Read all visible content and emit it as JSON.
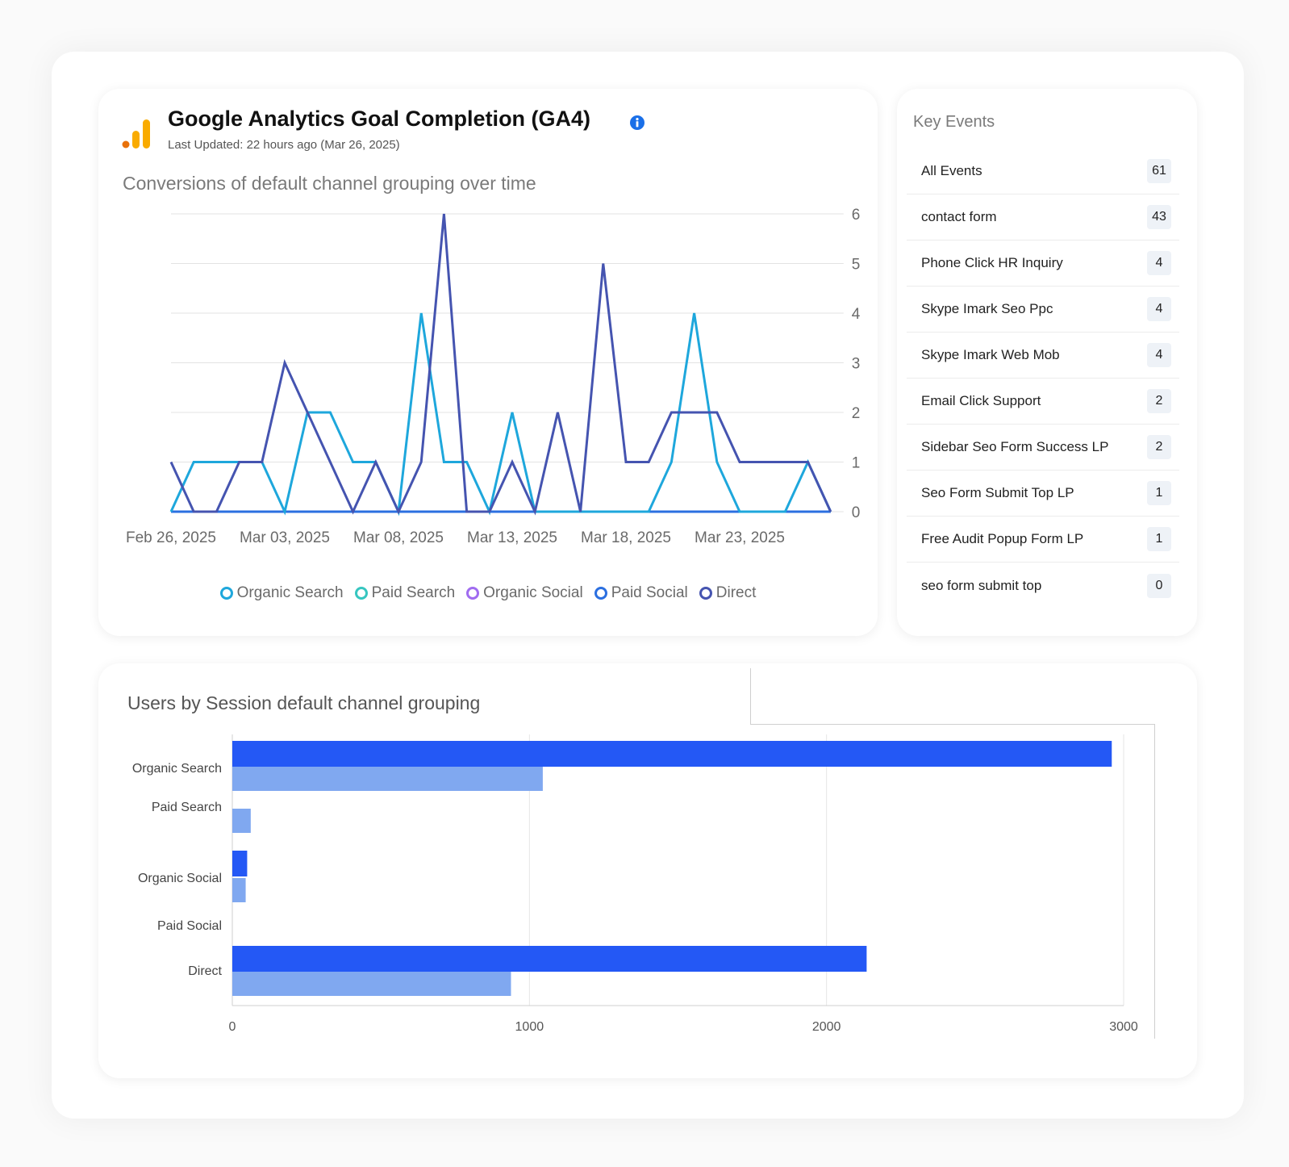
{
  "ga_widget": {
    "title": "Google Analytics Goal Completion (GA4)",
    "last_updated": "Last Updated: 22 hours ago (Mar 26, 2025)",
    "subtitle": "Conversions of default channel grouping over time",
    "logo_colors": [
      "#e8710a",
      "#f9ab00",
      "#f9ab00"
    ],
    "info_icon": "info-icon"
  },
  "key_events": {
    "title": "Key Events",
    "items": [
      {
        "name": "All Events",
        "count": "61"
      },
      {
        "name": "contact form",
        "count": "43"
      },
      {
        "name": "Phone Click HR Inquiry",
        "count": "4"
      },
      {
        "name": "Skype Imark Seo Ppc",
        "count": "4"
      },
      {
        "name": "Skype Imark Web Mob",
        "count": "4"
      },
      {
        "name": "Email Click Support",
        "count": "2"
      },
      {
        "name": "Sidebar Seo Form Success LP",
        "count": "2"
      },
      {
        "name": "Seo Form Submit Top LP",
        "count": "1"
      },
      {
        "name": "Free Audit Popup Form LP",
        "count": "1"
      },
      {
        "name": "seo form submit top",
        "count": "0"
      }
    ]
  },
  "users_widget": {
    "title": "Users by Session default channel grouping"
  },
  "chart_data": [
    {
      "type": "line",
      "x_ticks": [
        "Feb 26, 2025",
        "Mar 03, 2025",
        "Mar 08, 2025",
        "Mar 13, 2025",
        "Mar 18, 2025",
        "Mar 23, 2025"
      ],
      "x": [
        "2025-02-26",
        "2025-02-27",
        "2025-02-28",
        "2025-03-01",
        "2025-03-02",
        "2025-03-03",
        "2025-03-04",
        "2025-03-05",
        "2025-03-06",
        "2025-03-07",
        "2025-03-08",
        "2025-03-09",
        "2025-03-10",
        "2025-03-11",
        "2025-03-12",
        "2025-03-13",
        "2025-03-14",
        "2025-03-15",
        "2025-03-16",
        "2025-03-17",
        "2025-03-18",
        "2025-03-19",
        "2025-03-20",
        "2025-03-21",
        "2025-03-22",
        "2025-03-23",
        "2025-03-24",
        "2025-03-25",
        "2025-03-26",
        "2025-03-27"
      ],
      "ylim": [
        0,
        6
      ],
      "y_ticks": [
        0,
        1,
        2,
        3,
        4,
        5,
        6
      ],
      "y_axis_side": "right",
      "grid": true,
      "legend_placement": "bottom",
      "series": [
        {
          "name": "Organic Search",
          "color": "#1ea7dc",
          "values": [
            0,
            1,
            1,
            1,
            1,
            0,
            2,
            2,
            1,
            1,
            0,
            4,
            1,
            1,
            0,
            2,
            0,
            0,
            0,
            0,
            0,
            0,
            1,
            4,
            1,
            0,
            0,
            0,
            1,
            0
          ]
        },
        {
          "name": "Paid Search",
          "color": "#36c6c0",
          "values": [
            0,
            0,
            0,
            0,
            0,
            0,
            0,
            0,
            0,
            0,
            0,
            0,
            0,
            0,
            0,
            0,
            0,
            0,
            0,
            0,
            0,
            0,
            0,
            0,
            0,
            0,
            0,
            0,
            0,
            0
          ]
        },
        {
          "name": "Organic Social",
          "color": "#a06cf0",
          "values": [
            0,
            0,
            0,
            0,
            0,
            0,
            0,
            0,
            0,
            0,
            0,
            0,
            0,
            0,
            0,
            0,
            0,
            0,
            0,
            0,
            0,
            0,
            0,
            0,
            0,
            0,
            0,
            0,
            0,
            0
          ]
        },
        {
          "name": "Paid Social",
          "color": "#2b6fe0",
          "values": [
            0,
            0,
            0,
            0,
            0,
            0,
            0,
            0,
            0,
            0,
            0,
            0,
            0,
            0,
            0,
            0,
            0,
            0,
            0,
            0,
            0,
            0,
            0,
            0,
            0,
            0,
            0,
            0,
            0,
            0
          ]
        },
        {
          "name": "Direct",
          "color": "#4554b0",
          "values": [
            1,
            0,
            0,
            1,
            1,
            3,
            2,
            1,
            0,
            1,
            0,
            1,
            6,
            0,
            0,
            1,
            0,
            2,
            0,
            5,
            1,
            1,
            2,
            2,
            2,
            1,
            1,
            1,
            1,
            0
          ]
        }
      ]
    },
    {
      "type": "bar",
      "orientation": "horizontal",
      "categories": [
        "Organic Search",
        "Paid Search",
        "Organic Social",
        "Paid Social",
        "Direct"
      ],
      "xlim": [
        0,
        3000
      ],
      "x_ticks": [
        0,
        1000,
        2000,
        3000
      ],
      "grid": true,
      "series": [
        {
          "color": "#2458f5",
          "values": [
            2960,
            0,
            50,
            0,
            2135
          ]
        },
        {
          "color": "#80a8f0",
          "values": [
            1045,
            62,
            45,
            0,
            938
          ]
        }
      ]
    }
  ]
}
